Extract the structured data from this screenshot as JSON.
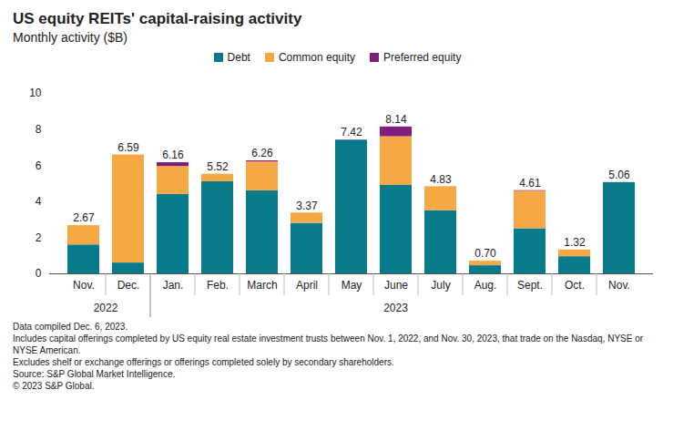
{
  "chart_data": {
    "type": "bar",
    "title": "US equity REITs' capital-raising activity",
    "subtitle": "Monthly activity ($B)",
    "categories": [
      "Nov.",
      "Dec.",
      "Jan.",
      "Feb.",
      "March",
      "April",
      "May",
      "June",
      "July",
      "Aug.",
      "Sept.",
      "Oct.",
      "Nov."
    ],
    "groups": [
      {
        "label": "2022",
        "count": 2
      },
      {
        "label": "2023",
        "count": 11
      }
    ],
    "series": [
      {
        "name": "Debt",
        "color": "#077a8c",
        "values": [
          1.6,
          0.6,
          4.4,
          5.1,
          4.6,
          2.8,
          7.4,
          4.9,
          3.5,
          0.45,
          2.5,
          0.95,
          5.06
        ]
      },
      {
        "name": "Common equity",
        "color": "#f5a843",
        "values": [
          1.07,
          5.99,
          1.55,
          0.42,
          1.6,
          0.57,
          0,
          2.7,
          1.33,
          0.25,
          2.08,
          0.37,
          0
        ]
      },
      {
        "name": "Preferred equity",
        "color": "#7d1f7c",
        "values": [
          0,
          0,
          0.21,
          0,
          0.06,
          0,
          0.02,
          0.54,
          0,
          0,
          0.03,
          0,
          0
        ]
      }
    ],
    "totals": [
      2.67,
      6.59,
      6.16,
      5.52,
      6.26,
      3.37,
      7.42,
      8.14,
      4.83,
      0.7,
      4.61,
      1.32,
      5.06
    ],
    "total_labels": [
      "2.67",
      "6.59",
      "6.16",
      "5.52",
      "6.26",
      "3.37",
      "7.42",
      "8.14",
      "4.83",
      "0.70",
      "4.61",
      "1.32",
      "5.06"
    ],
    "ylim": [
      0,
      10
    ],
    "yticks": [
      0,
      2,
      4,
      6,
      8,
      10
    ],
    "stacked": true,
    "grid": false,
    "legend": "top",
    "notes": [
      "Data compiled Dec. 6, 2023.",
      "Includes capital offerings completed by US equity real estate investment trusts between Nov. 1, 2022, and Nov. 30, 2023, that trade on the Nasdaq, NYSE or NYSE American.",
      "Excludes shelf or exchange offerings or offerings completed solely by secondary shareholders.",
      "Source: S&P Global Market Intelligence.",
      "© 2023 S&P Global."
    ]
  }
}
